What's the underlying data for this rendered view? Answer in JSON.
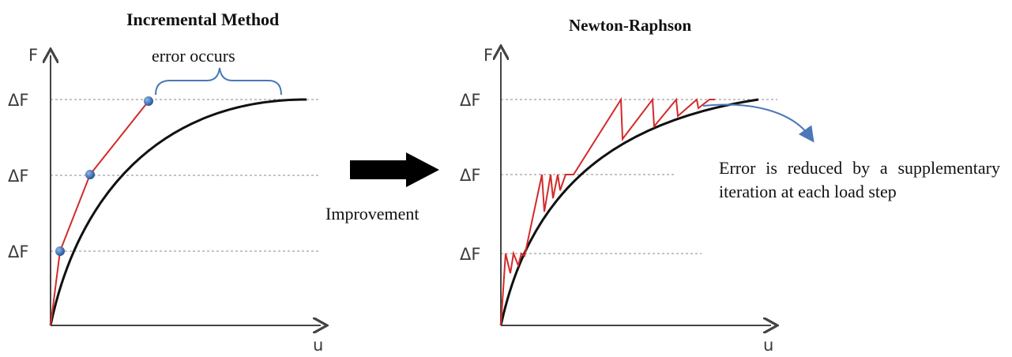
{
  "left_panel": {
    "title": "Incremental Method",
    "annotation": "error occurs",
    "y_axis": "F",
    "x_axis": "u",
    "load_labels": [
      "ΔF",
      "ΔF",
      "ΔF"
    ]
  },
  "right_panel": {
    "title": "Newton-Raphson",
    "y_axis": "F",
    "x_axis": "u",
    "load_labels": [
      "ΔF",
      "ΔF",
      "ΔF"
    ],
    "note": "Error is reduced by a supplementary iteration at each load step"
  },
  "arrow_label": "Improvement",
  "colors": {
    "curve": "#111111",
    "approximation": "#d42a2a",
    "marker": "#2f6db5",
    "brace": "#4a78b8",
    "gridline": "#8a8a8a"
  }
}
